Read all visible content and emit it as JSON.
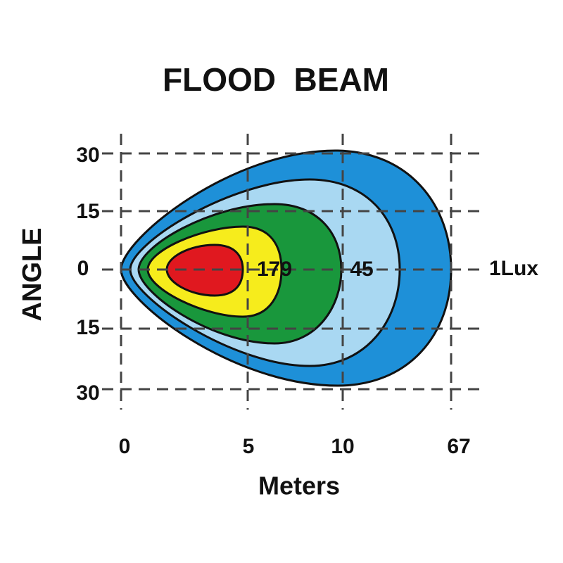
{
  "title": "FLOOD  BEAM",
  "y_axis": {
    "label": "ANGLE",
    "ticks": [
      "30",
      "15",
      "0",
      "15",
      "30"
    ]
  },
  "x_axis": {
    "label": "Meters",
    "ticks": [
      "0",
      "5",
      "10",
      "67"
    ]
  },
  "contour_labels": [
    "179",
    "45",
    "1Lux"
  ]
}
